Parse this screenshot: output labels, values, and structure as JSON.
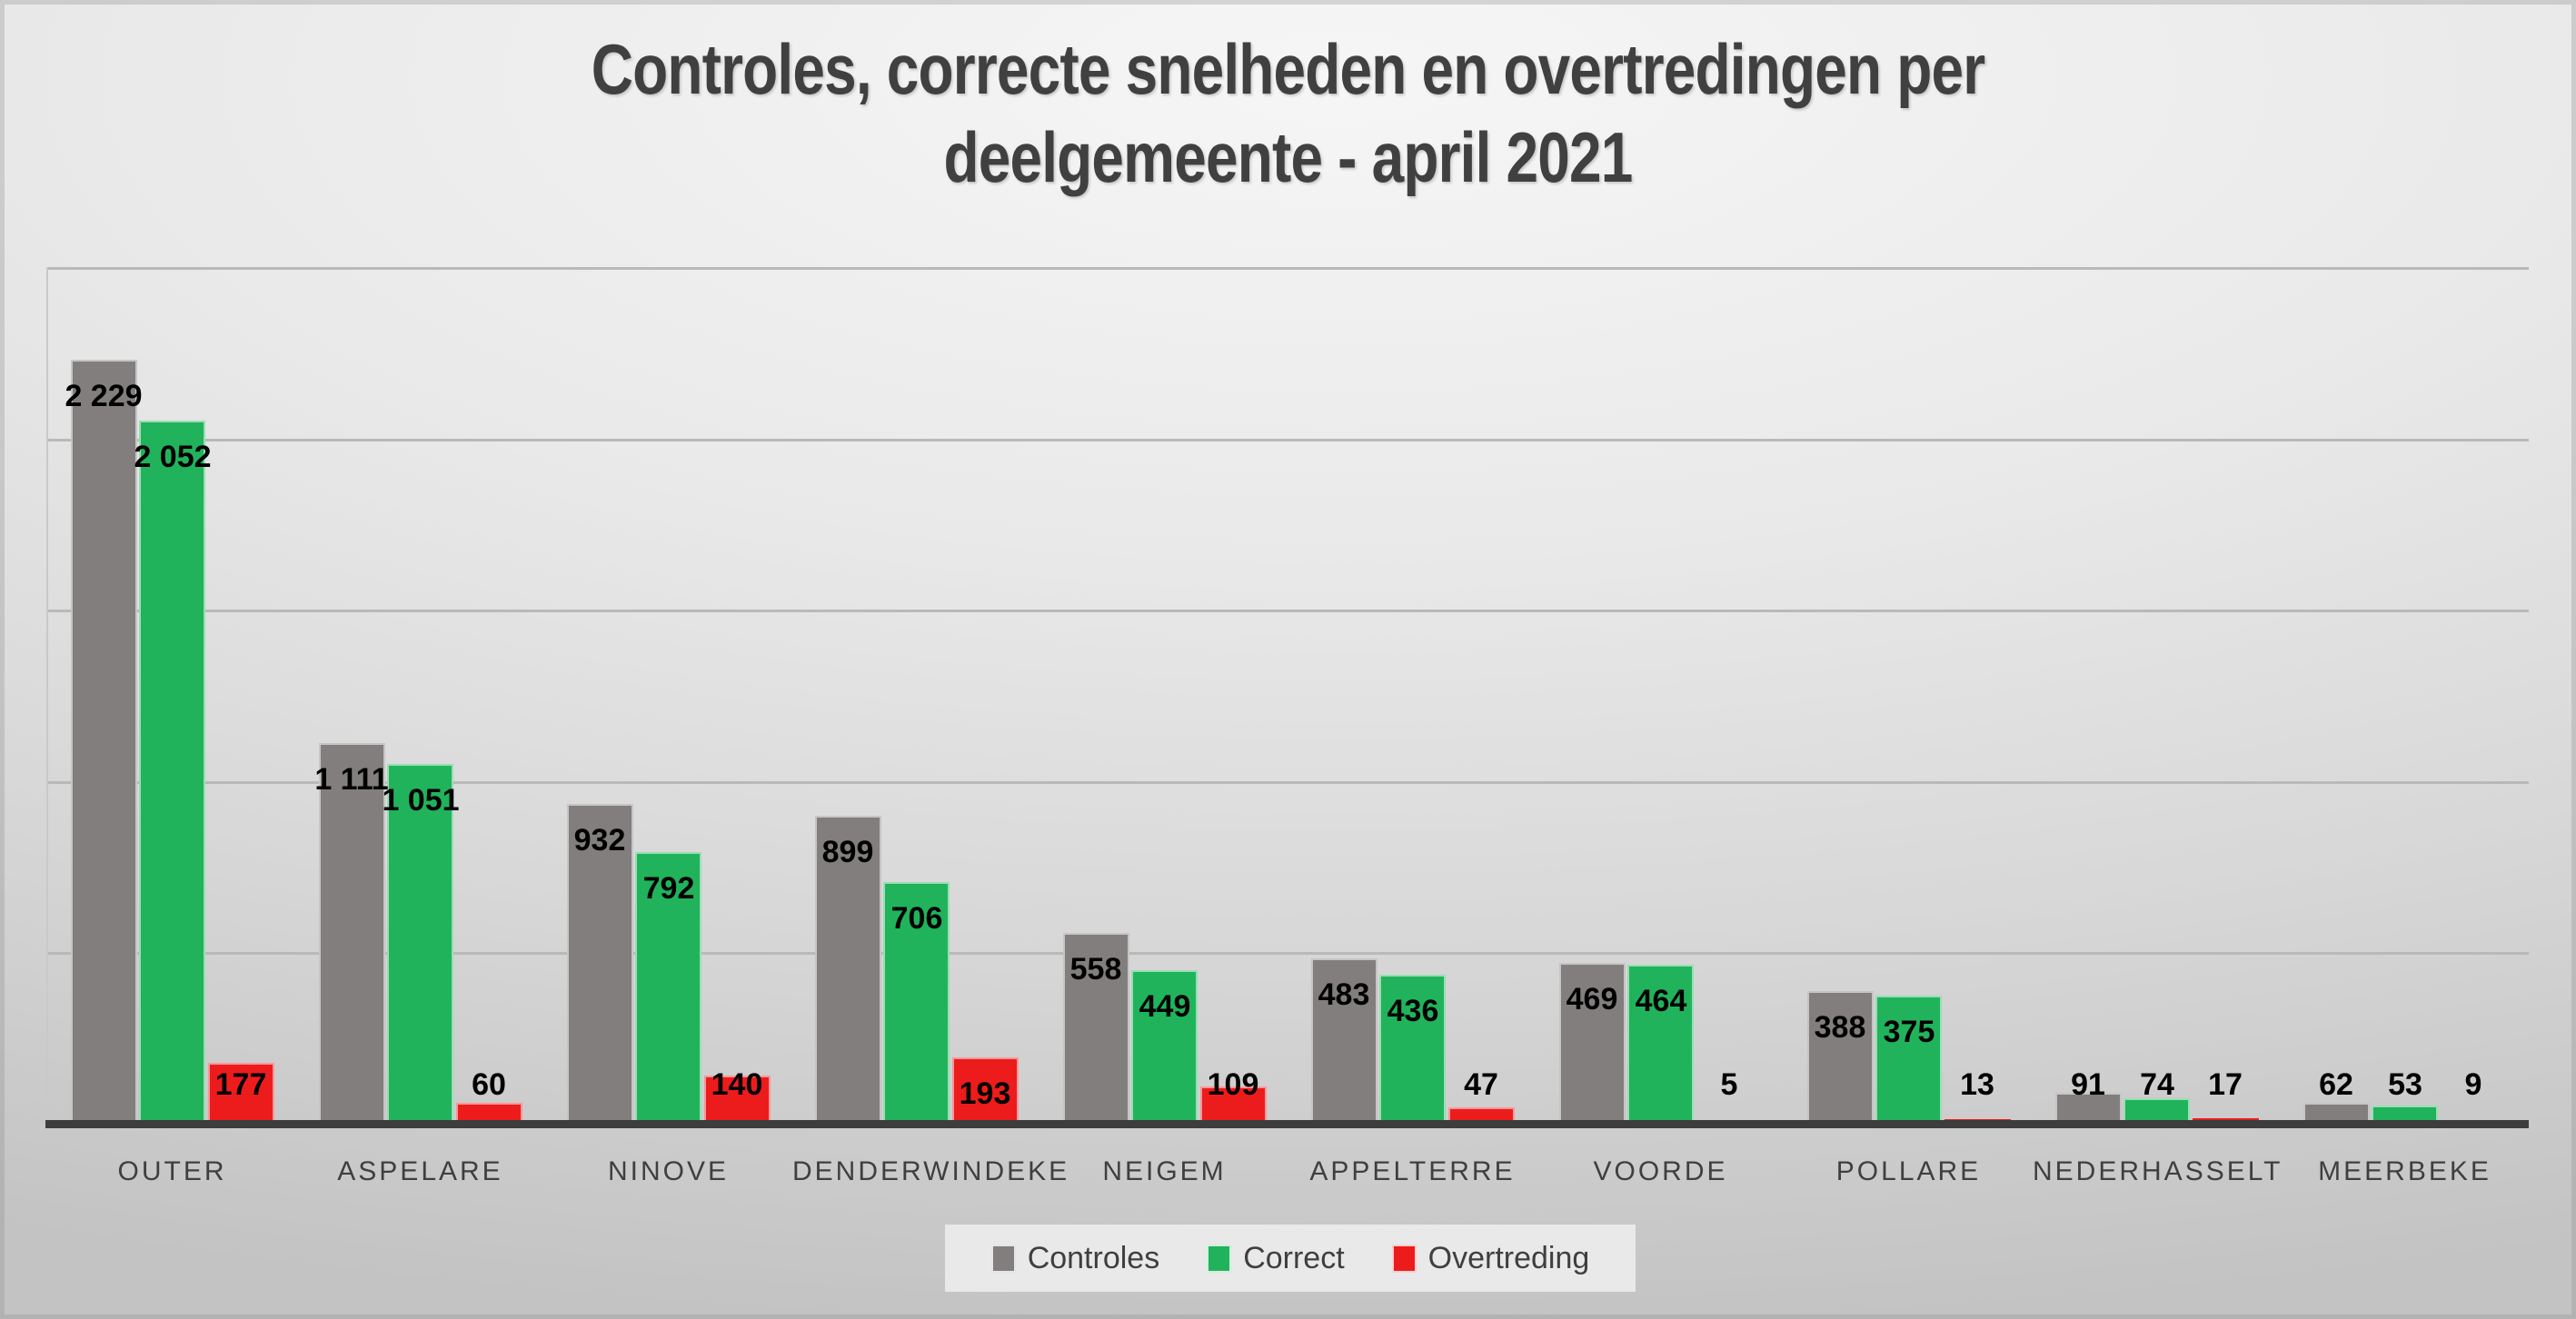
{
  "slide": {
    "title_line1": "Controles, correcte snelheden en overtredingen per",
    "title_line2": "deelgemeente - april 2021"
  },
  "chart_data": {
    "type": "bar",
    "title": "Controles, correcte snelheden en overtredingen per deelgemeente - april 2021",
    "categories": [
      "OUTER",
      "ASPELARE",
      "NINOVE",
      "DENDERWINDEKE",
      "NEIGEM",
      "APPELTERRE",
      "VOORDE",
      "POLLARE",
      "NEDERHASSELT",
      "MEERBEKE"
    ],
    "series": [
      {
        "name": "Controles",
        "color": "#827e7e",
        "values": [
          2229,
          1111,
          932,
          899,
          558,
          483,
          469,
          388,
          91,
          62
        ],
        "labels": [
          "2 229",
          "1 111",
          "932",
          "899",
          "558",
          "483",
          "469",
          "388",
          "91",
          "62"
        ]
      },
      {
        "name": "Correct",
        "color": "#21b35b",
        "values": [
          2052,
          1051,
          792,
          706,
          449,
          436,
          464,
          375,
          74,
          53
        ],
        "labels": [
          "2 052",
          "1 051",
          "792",
          "706",
          "449",
          "436",
          "464",
          "375",
          "74",
          "53"
        ]
      },
      {
        "name": "Overtreding",
        "color": "#ed1c1c",
        "values": [
          177,
          60,
          140,
          193,
          109,
          47,
          5,
          13,
          17,
          9
        ],
        "labels": [
          "177",
          "60",
          "140",
          "193",
          "109",
          "47",
          "5",
          "13",
          "17",
          "9"
        ]
      }
    ],
    "ylim": [
      0,
      2500
    ],
    "gridlines": [
      500,
      1000,
      1500,
      2000,
      2500
    ],
    "grid_on": true,
    "legend_position": "bottom",
    "xlabel": "",
    "ylabel": ""
  },
  "colors": {
    "title_text": "#404040",
    "category_text": "#3f3f3f",
    "value_label_text": "#000000",
    "gridline": "#b9b9b9",
    "axis_line": "#c9c9c9",
    "baseline": "#3d3d3d",
    "legend_bg": "#e9e9e9"
  }
}
